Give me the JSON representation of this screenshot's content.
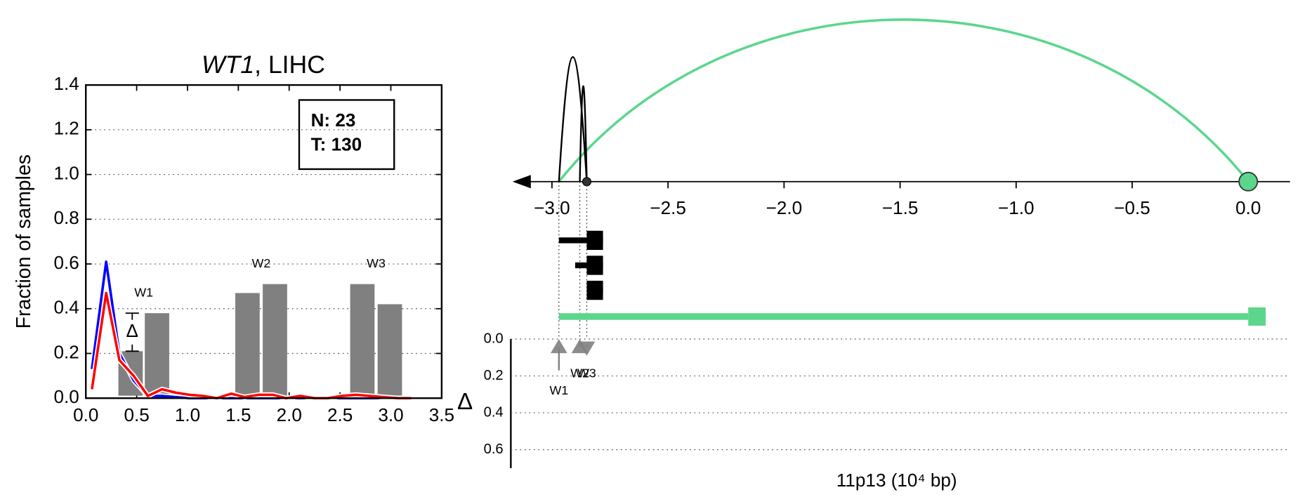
{
  "chart_data": [
    {
      "type": "line",
      "title": [
        "WT1",
        ", LIHC"
      ],
      "ylabel": "Fraction of samples",
      "xlim": [
        0,
        3.5
      ],
      "ylim": [
        0,
        1.4
      ],
      "xticks": [
        {
          "value": 0,
          "label": "0.0"
        },
        {
          "value": 0.5,
          "label": "0.5"
        },
        {
          "value": 1,
          "label": "1.0"
        },
        {
          "value": 1.5,
          "label": "1.5"
        },
        {
          "value": 2,
          "label": "2.0"
        },
        {
          "value": 2.5,
          "label": "2.5"
        },
        {
          "value": 3,
          "label": "3.0"
        },
        {
          "value": 3.5,
          "label": "3.5"
        }
      ],
      "yticks": [
        {
          "value": 0,
          "label": "0.0"
        },
        {
          "value": 0.2,
          "label": "0.2"
        },
        {
          "value": 0.4,
          "label": "0.4"
        },
        {
          "value": 0.6,
          "label": "0.6"
        },
        {
          "value": 0.8,
          "label": "0.8"
        },
        {
          "value": 1,
          "label": "1.0"
        },
        {
          "value": 1.2,
          "label": "1.2"
        },
        {
          "value": 1.4,
          "label": "1.4"
        }
      ],
      "grid": true,
      "x": [
        0.06,
        0.2,
        0.33,
        0.47,
        0.61,
        0.75,
        0.88,
        1.02,
        1.15,
        1.29,
        1.43,
        1.56,
        1.7,
        1.84,
        1.97,
        2.11,
        2.25,
        2.38,
        2.52,
        2.66,
        2.79,
        2.93,
        3.07,
        3.2
      ],
      "series": [
        {
          "color": "#0000ff",
          "values": [
            0.13,
            0.61,
            0.2,
            0.08,
            0.01,
            0.01,
            0.005,
            0,
            0,
            0,
            0,
            0,
            0,
            0,
            0,
            0,
            0,
            0,
            0,
            0,
            0,
            0,
            0,
            0
          ]
        },
        {
          "color": "#ff0000",
          "values": [
            0.04,
            0.47,
            0.17,
            0.1,
            0.01,
            0.04,
            0.025,
            0.015,
            0.01,
            0,
            0.02,
            0.005,
            0.015,
            0.015,
            0,
            0.01,
            0,
            0,
            0.01,
            0.015,
            0.01,
            0.005,
            0,
            0
          ]
        }
      ],
      "bars": {
        "x": [
          0.44,
          0.7,
          1.59,
          1.86,
          2.72,
          2.99
        ],
        "values": [
          0.21,
          0.38,
          0.47,
          0.51,
          0.51,
          0.42
        ],
        "color": "#808080"
      },
      "bar_labels": [
        "W1",
        "W2",
        "W3"
      ],
      "annotation": "Δ",
      "legend_text": [
        "N: 23",
        "T: 130"
      ]
    },
    {
      "type": "genome",
      "xlabel": "11p13 (10⁴ bp)",
      "xlim": [
        -3.17,
        0.18
      ],
      "xticks": [
        {
          "value": -3,
          "label": "−3.0"
        },
        {
          "value": -2.5,
          "label": "−2.5"
        },
        {
          "value": -2,
          "label": "−2.0"
        },
        {
          "value": -1.5,
          "label": "−1.5"
        },
        {
          "value": -1,
          "label": "−1.0"
        },
        {
          "value": -0.5,
          "label": "−0.5"
        },
        {
          "value": 0,
          "label": "0.0"
        }
      ],
      "arcs": [
        {
          "start": -2.97,
          "end": 0,
          "color": "#5cd68d"
        },
        {
          "start": -2.97,
          "end": -2.85,
          "color": "#000000"
        },
        {
          "start": -2.88,
          "end": -2.85,
          "color": "#000000"
        }
      ],
      "tracks": [
        {
          "start": -2.97,
          "end": -2.78,
          "exon_start": -2.85
        },
        {
          "start": -2.9,
          "end": -2.78,
          "exon_start": -2.85
        },
        {
          "start": -2.85,
          "end": -2.78,
          "exon_start": -2.85
        }
      ],
      "span": {
        "start": -2.97,
        "end": 0,
        "color": "#5cd68d"
      },
      "ylabel": "Δ",
      "ylim": [
        0,
        0.7
      ],
      "yticks": [
        {
          "value": 0,
          "label": "0.0"
        },
        {
          "value": 0.2,
          "label": "0.2"
        },
        {
          "value": 0.4,
          "label": "0.4"
        },
        {
          "value": 0.6,
          "label": "0.6"
        }
      ],
      "markers": {
        "x": [
          -2.97,
          -2.88,
          -2.85
        ],
        "values": [
          0.17,
          0.03,
          0.03
        ],
        "labels": [
          "W1",
          "W2",
          "W3"
        ],
        "direction": [
          "up",
          "up",
          "down"
        ]
      }
    }
  ]
}
